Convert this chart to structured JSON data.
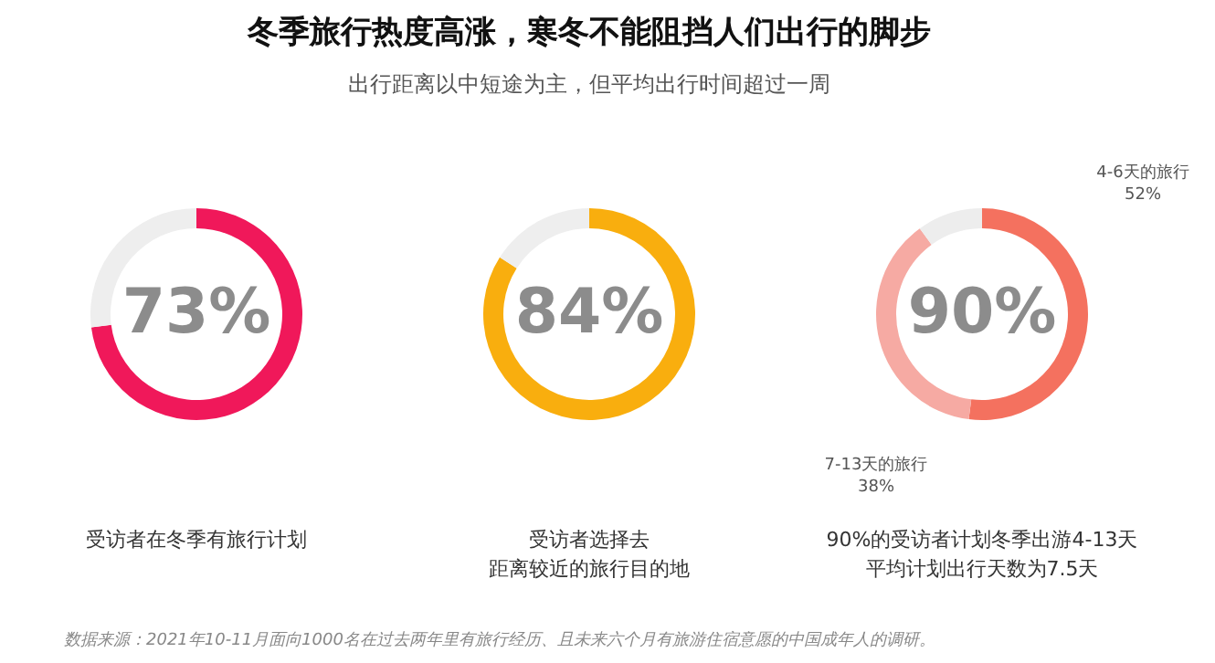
{
  "chart_data": [
    {
      "type": "donut",
      "title": "冬季旅行热度高涨，寒冬不能阻挡人们出行的脚步",
      "categories": [
        null,
        null
      ],
      "values": [
        73,
        27
      ],
      "colors": [
        "#f0185a",
        "#eeeeee"
      ],
      "annotations": [
        "73%",
        "受访者在冬季有旅行计划",
        "数据来源：2021年10-11月面向1000名在过去两年里有旅行经历、且未来六个月有旅游住宿意愿的中国成年人的调研。"
      ]
    },
    {
      "type": "donut",
      "subtitle": "出行距离以中短途为主，但平均出行时间超过一周",
      "categories": [
        null,
        null
      ],
      "values": [
        84,
        16
      ],
      "colors": [
        "#f9ae0e",
        "#eeeeee"
      ],
      "annotations": [
        "84%",
        "受访者选择去距离较近的旅行目的地"
      ]
    },
    {
      "type": "donut",
      "categories": [
        "4-6天的旅行",
        "7-13天的旅行",
        null
      ],
      "values": [
        52,
        38,
        10
      ],
      "colors": [
        "#f4715f",
        "#f6aaa3",
        "#ededed"
      ],
      "value_labels": [
        "52%",
        "38%",
        null
      ],
      "annotations": [
        "90%",
        "90%的受访者计划冬季出游4-13天平均计划出行天数为7.5天"
      ]
    }
  ]
}
